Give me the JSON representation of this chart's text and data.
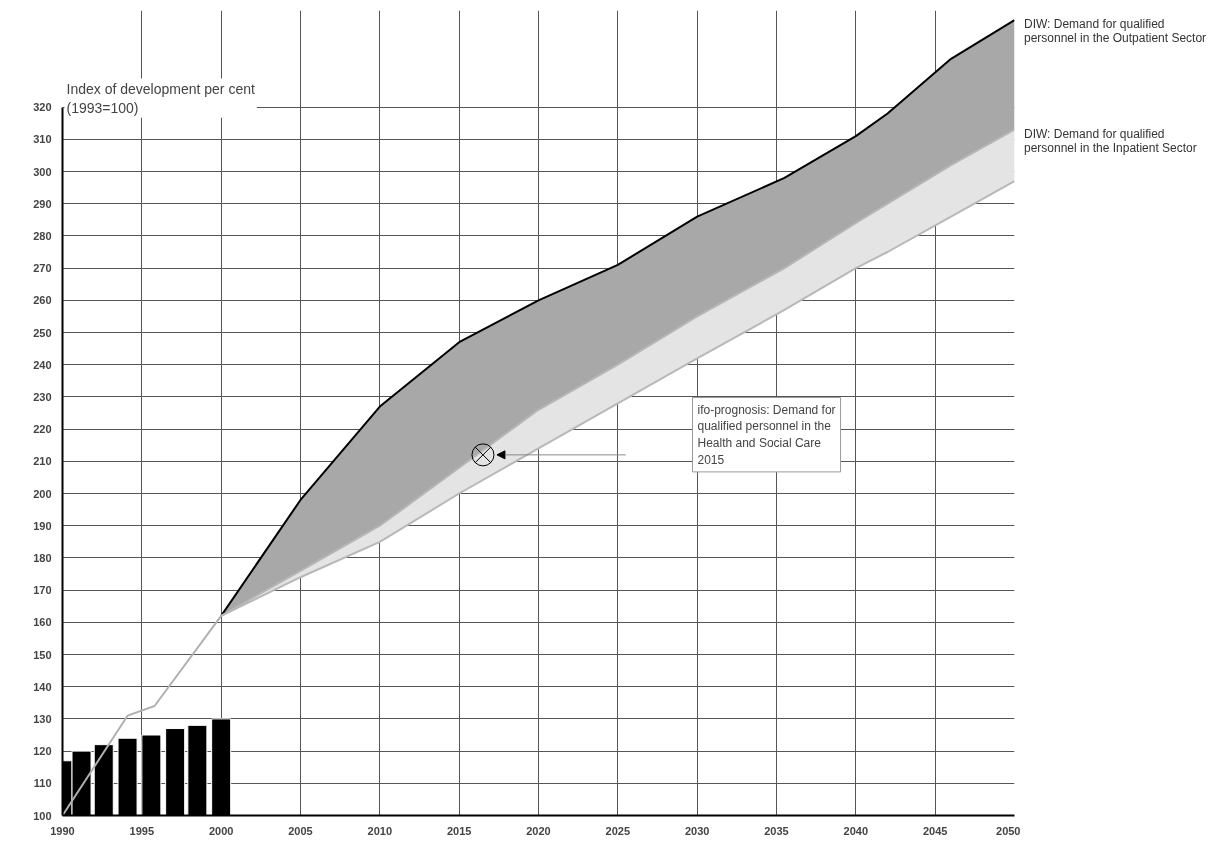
{
  "chart_data": {
    "type": "area",
    "ylabel": "Index of development per cent\n(1993=100)",
    "series": [
      {
        "name": "DIW: Demand for qualified personnel in the Outpatient Sector",
        "color": "#a8a8a8",
        "x": [
          2000,
          2005,
          2010,
          2015,
          2020,
          2025,
          2030,
          2035.5,
          2040,
          2042,
          2046,
          2050
        ],
        "values": [
          162,
          198,
          227,
          247,
          260,
          271,
          286,
          298,
          311,
          318,
          335,
          347
        ]
      },
      {
        "name": "DIW: Demand for qualified personnel in the Inpatient Sector",
        "color": "#e4e4e4",
        "x": [
          2000,
          2005,
          2010,
          2015,
          2020,
          2025,
          2030,
          2035.5,
          2040,
          2042,
          2046,
          2050
        ],
        "values": [
          162,
          176,
          190,
          208,
          226,
          240,
          255,
          270,
          284,
          290,
          302,
          313
        ]
      },
      {
        "type": "line",
        "color": "#b8b8b8",
        "x": [
          2000,
          2005,
          2010,
          2015,
          2020,
          2025,
          2030,
          2035.5,
          2040,
          2042,
          2046,
          2050
        ],
        "values": [
          162,
          174,
          185,
          200,
          214,
          228,
          242,
          257,
          270,
          275,
          286,
          297
        ]
      },
      {
        "type": "line",
        "color": "#b0b0b0",
        "x": [
          1990,
          1994.1,
          1995.8,
          2000
        ],
        "values": [
          100,
          131,
          134,
          162
        ]
      },
      {
        "type": "scatter",
        "marker": "cross",
        "color": "#000000",
        "x": [
          2016.5
        ],
        "values": [
          212
        ]
      },
      {
        "type": "bar",
        "color": "#000000",
        "x": [
          1990.3,
          1991.2,
          1992.6,
          1994.1,
          1995.6,
          1997.1,
          1998.5,
          2000.0
        ],
        "values": [
          117,
          120,
          122,
          124,
          125,
          127,
          128,
          130
        ]
      }
    ],
    "annotations": [
      "ifo-prognosis: Demand for\nqualified personnel in the\nHealth and Social Care\n2015"
    ],
    "xlim": [
      1990,
      2050
    ],
    "ylim": [
      100,
      350
    ],
    "xticks": [
      1990,
      1995,
      2000,
      2005,
      2010,
      2015,
      2020,
      2025,
      2030,
      2035,
      2040,
      2045,
      2050
    ],
    "yticks": [
      100,
      110,
      120,
      130,
      140,
      150,
      160,
      170,
      180,
      190,
      200,
      210,
      220,
      230,
      240,
      250,
      260,
      270,
      280,
      290,
      300,
      310,
      320
    ],
    "grid": true
  }
}
